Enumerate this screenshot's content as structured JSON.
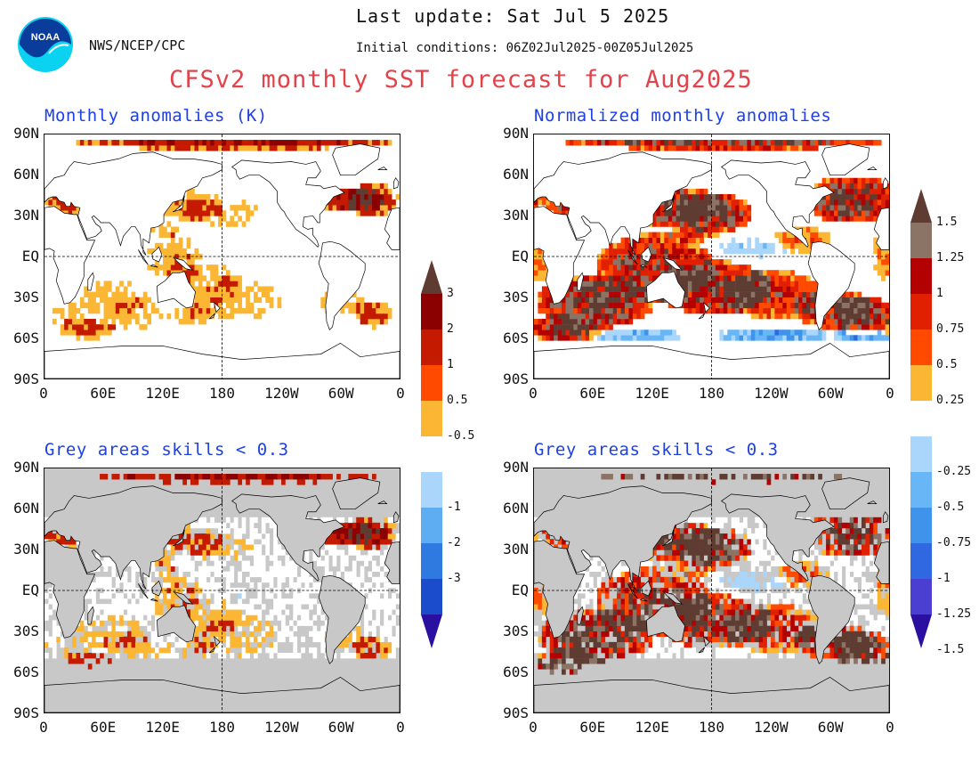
{
  "header": {
    "last_update": "Last update: Sat Jul 5 2025",
    "agency": "NWS/NCEP/CPC",
    "initial_conditions": "Initial conditions: 06Z02Jul2025-00Z05Jul2025",
    "main_title": "CFSv2 monthly SST forecast for Aug2025",
    "logo_text": "NOAA"
  },
  "panels": [
    {
      "id": "anom",
      "title": "Monthly anomalies (K)",
      "grey_skill_mask": false,
      "variable": "absolute"
    },
    {
      "id": "norm",
      "title": "Normalized monthly anomalies",
      "grey_skill_mask": false,
      "variable": "normalized"
    },
    {
      "id": "anom_skill",
      "title": "Grey areas skills < 0.3",
      "grey_skill_mask": true,
      "variable": "absolute"
    },
    {
      "id": "norm_skill",
      "title": "Grey areas skills < 0.3",
      "grey_skill_mask": true,
      "variable": "normalized"
    }
  ],
  "axes": {
    "lat_labels": [
      "90N",
      "60N",
      "30N",
      "EQ",
      "30S",
      "60S",
      "90S"
    ],
    "lon_labels": [
      "0",
      "60E",
      "120E",
      "180",
      "120W",
      "60W",
      "0"
    ]
  },
  "colorbar_absolute": {
    "labels": [
      "3",
      "2",
      "1",
      "0.5",
      "-0.5",
      "-1",
      "-2",
      "-3"
    ],
    "colors_positive": [
      "#fbb634",
      "#ff4a00",
      "#c31a00",
      "#8b0000",
      "#5e3c32"
    ],
    "colors_negative": [
      "#aad6fb",
      "#5eadf3",
      "#2f7ae0",
      "#1a4ccc",
      "#2a0fa0"
    ],
    "units": "K"
  },
  "colorbar_normalized": {
    "labels": [
      "1.5",
      "1.25",
      "1",
      "0.75",
      "0.5",
      "0.25",
      "-0.25",
      "-0.5",
      "-0.75",
      "-1",
      "-1.25",
      "-1.5"
    ],
    "colors_positive": [
      "#fbb634",
      "#ff4a00",
      "#e02000",
      "#b30000",
      "#8b7366",
      "#5e3c32"
    ],
    "colors_negative": [
      "#aad6fb",
      "#68b6f5",
      "#3f93ea",
      "#2f68e0",
      "#4a3fd0",
      "#2a0fa0"
    ]
  },
  "map_colors": {
    "land": "#ffffff",
    "skill_grey": "#c8c8c8",
    "coast": "#000000"
  }
}
